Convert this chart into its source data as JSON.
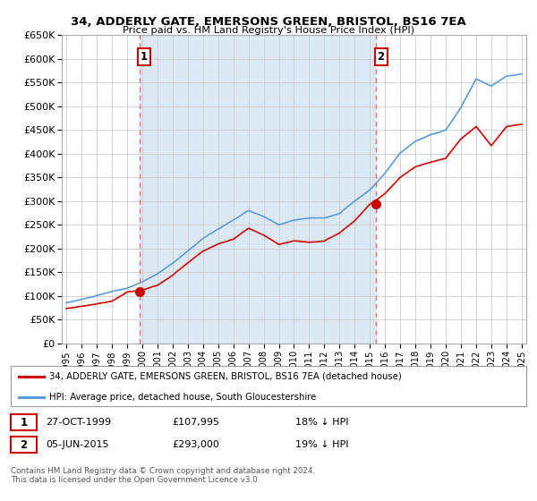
{
  "title": "34, ADDERLY GATE, EMERSONS GREEN, BRISTOL, BS16 7EA",
  "subtitle": "Price paid vs. HM Land Registry's House Price Index (HPI)",
  "legend_line1": "34, ADDERLY GATE, EMERSONS GREEN, BRISTOL, BS16 7EA (detached house)",
  "legend_line2": "HPI: Average price, detached house, South Gloucestershire",
  "footer": "Contains HM Land Registry data © Crown copyright and database right 2024.\nThis data is licensed under the Open Government Licence v3.0.",
  "sale1_date": "27-OCT-1999",
  "sale1_price": "£107,995",
  "sale1_hpi": "18% ↓ HPI",
  "sale2_date": "05-JUN-2015",
  "sale2_price": "£293,000",
  "sale2_hpi": "19% ↓ HPI",
  "red_color": "#cc0000",
  "blue_color": "#5b9bd5",
  "blue_fill": "#dce9f5",
  "dashed_red": "#e87070",
  "background_color": "#ffffff",
  "grid_color": "#cccccc",
  "ylim": [
    0,
    650000
  ],
  "yticks": [
    0,
    50000,
    100000,
    150000,
    200000,
    250000,
    300000,
    350000,
    400000,
    450000,
    500000,
    550000,
    600000,
    650000
  ],
  "sale1_x": 1999.83,
  "sale1_y": 107995,
  "sale2_x": 2015.42,
  "sale2_y": 293000,
  "vline1_x": 1999.83,
  "vline2_x": 2015.42,
  "xlim_left": 1994.7,
  "xlim_right": 2025.3
}
